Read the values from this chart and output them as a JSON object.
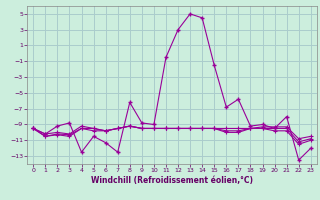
{
  "xlabel": "Windchill (Refroidissement éolien,°C)",
  "background_color": "#cceedd",
  "grid_color": "#aacccc",
  "line_color": "#990099",
  "x": [
    0,
    1,
    2,
    3,
    4,
    5,
    6,
    7,
    8,
    9,
    10,
    11,
    12,
    13,
    14,
    15,
    16,
    17,
    18,
    19,
    20,
    21,
    22,
    23
  ],
  "y_main": [
    -9.5,
    -10.2,
    -9.2,
    -8.8,
    -12.5,
    -10.5,
    -11.3,
    -12.5,
    -6.2,
    -8.8,
    -9.0,
    -0.5,
    3.0,
    5.0,
    4.5,
    -1.5,
    -6.8,
    -5.8,
    -9.2,
    -9.0,
    -9.5,
    -8.0,
    -13.5,
    -12.0
  ],
  "y_s2": [
    -9.5,
    -10.2,
    -10.0,
    -10.2,
    -9.2,
    -9.5,
    -9.8,
    -9.5,
    -9.2,
    -9.5,
    -9.5,
    -9.5,
    -9.5,
    -9.5,
    -9.5,
    -9.5,
    -9.5,
    -9.5,
    -9.5,
    -9.3,
    -9.3,
    -9.3,
    -10.8,
    -10.5
  ],
  "y_s3": [
    -9.5,
    -10.5,
    -10.2,
    -10.3,
    -9.5,
    -9.5,
    -9.8,
    -9.5,
    -9.2,
    -9.5,
    -9.5,
    -9.5,
    -9.5,
    -9.5,
    -9.5,
    -9.5,
    -9.8,
    -9.8,
    -9.5,
    -9.5,
    -9.5,
    -9.5,
    -11.2,
    -10.8
  ],
  "y_s4": [
    -9.5,
    -10.5,
    -10.3,
    -10.5,
    -9.5,
    -9.8,
    -9.8,
    -9.5,
    -9.2,
    -9.5,
    -9.5,
    -9.5,
    -9.5,
    -9.5,
    -9.5,
    -9.5,
    -10.0,
    -10.0,
    -9.5,
    -9.5,
    -9.8,
    -9.8,
    -11.5,
    -11.0
  ],
  "ylim": [
    -14.0,
    6.0
  ],
  "xlim": [
    -0.5,
    23.5
  ],
  "yticks": [
    5,
    3,
    1,
    -1,
    -3,
    -5,
    -7,
    -9,
    -11,
    -13
  ],
  "xticks": [
    0,
    1,
    2,
    3,
    4,
    5,
    6,
    7,
    8,
    9,
    10,
    11,
    12,
    13,
    14,
    15,
    16,
    17,
    18,
    19,
    20,
    21,
    22,
    23
  ]
}
